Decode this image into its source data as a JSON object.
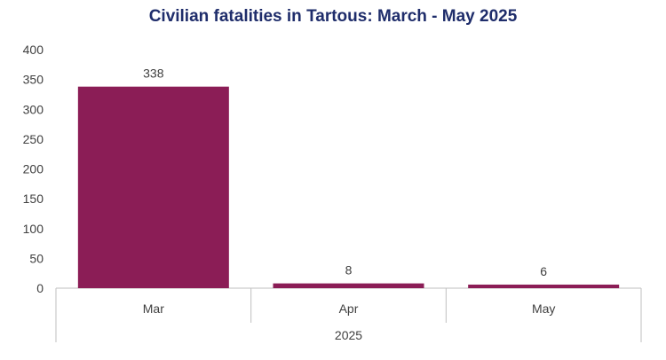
{
  "chart_data": {
    "type": "bar",
    "title": "Civilian fatalities in Tartous: March - May 2025",
    "categories": [
      "Mar",
      "Apr",
      "May"
    ],
    "group_label": "2025",
    "values": [
      338,
      8,
      6
    ],
    "data_labels": [
      "338",
      "8",
      "6"
    ],
    "ylim": [
      0,
      400
    ],
    "yticks": [
      "0",
      "50",
      "100",
      "150",
      "200",
      "250",
      "300",
      "350",
      "400"
    ],
    "xlabel": "",
    "ylabel": "",
    "grid": false,
    "legend": "none",
    "colors": {
      "bar": "#8b1d56",
      "title": "#1f2d6b",
      "axis": "#bfbfbf"
    }
  }
}
